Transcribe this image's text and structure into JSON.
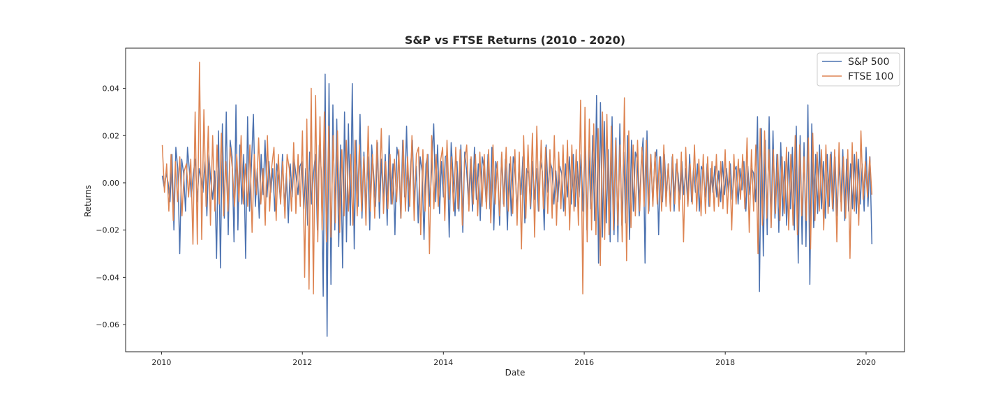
{
  "chart_data": {
    "type": "line",
    "title": "S&P vs FTSE Returns (2010 - 2020)",
    "xlabel": "Date",
    "ylabel": "Returns",
    "xlim": [
      "2009-06-29",
      "2020-07-18"
    ],
    "ylim": [
      -0.0715,
      0.057
    ],
    "x_ticks": [
      "2010",
      "2012",
      "2014",
      "2016",
      "2018",
      "2020"
    ],
    "y_ticks": [
      "−0.06",
      "−0.04",
      "−0.02",
      "0.00",
      "0.02",
      "0.04"
    ],
    "legend_position": "top-right",
    "grid": false,
    "x_range": [
      "2010-01-05",
      "2020-01-31"
    ],
    "series": [
      {
        "name": "S&P 500",
        "color": "#4c72b0",
        "values": [
          0.003,
          -0.002,
          0.004,
          0.0,
          -0.008,
          0.012,
          -0.02,
          0.015,
          0.006,
          -0.03,
          0.01,
          0.004,
          -0.012,
          0.015,
          0.005,
          -0.006,
          0.004,
          0.01,
          -0.008,
          0.006,
          0.002,
          -0.004,
          0.009,
          -0.014,
          0.012,
          0.001,
          -0.007,
          0.005,
          -0.032,
          0.022,
          -0.036,
          0.025,
          -0.015,
          0.03,
          -0.022,
          0.018,
          0.011,
          -0.025,
          0.033,
          -0.02,
          0.016,
          -0.009,
          0.012,
          -0.032,
          0.028,
          -0.012,
          0.008,
          0.029,
          -0.01,
          0.006,
          -0.015,
          0.012,
          -0.005,
          0.018,
          -0.006,
          0.009,
          -0.004,
          0.006,
          -0.012,
          0.008,
          0.002,
          -0.008,
          0.012,
          -0.01,
          0.004,
          -0.017,
          0.008,
          -0.006,
          0.01,
          0.003,
          -0.005,
          0.007,
          0.009,
          -0.011,
          0.006,
          -0.018,
          0.013,
          -0.009,
          0.004,
          0.012,
          -0.02,
          0.016,
          0.005,
          -0.048,
          0.046,
          -0.065,
          0.042,
          -0.043,
          0.033,
          -0.02,
          0.027,
          -0.027,
          0.016,
          -0.036,
          0.03,
          -0.025,
          0.025,
          -0.018,
          0.042,
          -0.028,
          0.018,
          -0.01,
          0.029,
          -0.015,
          0.013,
          -0.012,
          0.011,
          -0.02,
          0.016,
          0.004,
          -0.01,
          0.017,
          -0.015,
          0.01,
          -0.008,
          0.012,
          -0.018,
          0.02,
          -0.009,
          0.008,
          -0.022,
          0.015,
          0.01,
          -0.015,
          0.018,
          -0.006,
          0.024,
          -0.012,
          0.006,
          0.018,
          -0.009,
          0.007,
          -0.017,
          0.011,
          0.005,
          -0.024,
          0.008,
          0.012,
          -0.01,
          0.007,
          0.025,
          -0.008,
          0.016,
          -0.013,
          0.009,
          -0.006,
          0.011,
          0.012,
          -0.023,
          0.017,
          0.003,
          -0.014,
          0.009,
          -0.012,
          0.016,
          -0.021,
          0.013,
          0.005,
          -0.009,
          0.01,
          -0.012,
          0.015,
          -0.007,
          0.008,
          -0.016,
          0.011,
          0.006,
          -0.008,
          0.012,
          -0.011,
          0.015,
          -0.02,
          0.009,
          0.004,
          -0.018,
          0.012,
          -0.009,
          0.01,
          -0.02,
          0.008,
          -0.014,
          0.011,
          0.006,
          -0.013,
          0.008,
          -0.005,
          0.011,
          -0.017,
          0.006,
          0.004,
          -0.011,
          0.009,
          -0.007,
          0.006,
          -0.012,
          0.009,
          0.005,
          -0.02,
          0.016,
          -0.004,
          0.009,
          0.006,
          -0.009,
          0.005,
          -0.008,
          0.007,
          0.004,
          -0.012,
          0.008,
          -0.006,
          0.011,
          -0.009,
          0.012,
          -0.01,
          0.009,
          -0.006,
          0.012,
          -0.012,
          0.016,
          -0.02,
          0.014,
          -0.011,
          0.02,
          -0.016,
          0.037,
          -0.034,
          0.034,
          -0.023,
          0.026,
          -0.017,
          0.014,
          -0.025,
          0.028,
          -0.022,
          0.019,
          -0.025,
          0.025,
          -0.018,
          0.013,
          -0.017,
          0.02,
          -0.024,
          0.018,
          -0.012,
          0.013,
          0.01,
          -0.014,
          0.008,
          0.019,
          -0.034,
          0.022,
          -0.012,
          0.012,
          -0.009,
          0.009,
          0.014,
          -0.022,
          0.011,
          -0.008,
          0.012,
          -0.006,
          0.008,
          -0.01,
          0.011,
          -0.012,
          0.008,
          0.004,
          -0.007,
          0.009,
          -0.005,
          0.006,
          -0.009,
          0.012,
          -0.008,
          0.006,
          -0.004,
          0.008,
          -0.012,
          0.007,
          0.005,
          -0.006,
          0.008,
          -0.01,
          0.006,
          -0.004,
          0.007,
          -0.006,
          0.005,
          -0.008,
          0.009,
          -0.005,
          0.006,
          -0.004,
          0.008,
          -0.007,
          0.005,
          0.007,
          -0.009,
          0.006,
          -0.003,
          0.009,
          -0.012,
          0.007,
          -0.005,
          0.006,
          0.004,
          -0.008,
          0.028,
          -0.046,
          0.023,
          -0.031,
          0.018,
          -0.022,
          0.028,
          -0.019,
          0.022,
          -0.015,
          0.012,
          -0.021,
          0.017,
          -0.014,
          0.009,
          -0.018,
          0.013,
          -0.011,
          0.015,
          -0.02,
          0.024,
          -0.034,
          0.02,
          -0.026,
          0.017,
          -0.027,
          0.033,
          -0.043,
          0.025,
          -0.019,
          0.012,
          -0.013,
          0.016,
          -0.011,
          0.009,
          -0.015,
          0.012,
          -0.01,
          0.013,
          -0.012,
          0.011,
          -0.014,
          0.009,
          -0.008,
          0.014,
          -0.016,
          0.01,
          -0.012,
          0.008,
          -0.011,
          0.012,
          -0.013,
          0.01,
          -0.009,
          0.008,
          -0.012,
          0.015,
          -0.01,
          0.011,
          -0.026
        ]
      },
      {
        "name": "FTSE 100",
        "color": "#dd8452",
        "values": [
          0.016,
          -0.004,
          0.008,
          -0.012,
          0.012,
          -0.016,
          0.009,
          -0.008,
          0.011,
          -0.014,
          0.005,
          0.008,
          -0.006,
          0.01,
          -0.026,
          0.03,
          -0.026,
          0.051,
          -0.024,
          0.031,
          -0.01,
          0.024,
          -0.018,
          0.02,
          -0.012,
          0.016,
          -0.009,
          0.021,
          -0.014,
          0.009,
          -0.012,
          0.015,
          0.006,
          -0.01,
          0.012,
          -0.008,
          0.02,
          -0.009,
          0.008,
          -0.01,
          0.016,
          -0.021,
          0.012,
          -0.005,
          0.019,
          -0.009,
          0.006,
          -0.018,
          0.02,
          -0.012,
          0.007,
          0.015,
          -0.016,
          0.012,
          -0.009,
          0.009,
          -0.015,
          0.012,
          0.006,
          -0.012,
          0.017,
          -0.013,
          0.012,
          -0.01,
          0.022,
          -0.04,
          0.027,
          -0.045,
          0.04,
          -0.047,
          0.037,
          -0.025,
          0.028,
          -0.02,
          0.03,
          -0.025,
          0.024,
          -0.023,
          0.02,
          -0.017,
          0.022,
          -0.021,
          0.014,
          -0.014,
          0.018,
          -0.012,
          0.012,
          -0.018,
          0.018,
          -0.014,
          0.016,
          -0.012,
          0.011,
          -0.018,
          0.024,
          -0.012,
          0.012,
          -0.015,
          0.018,
          -0.008,
          0.023,
          -0.013,
          0.009,
          -0.011,
          0.012,
          -0.009,
          0.01,
          -0.008,
          0.014,
          -0.015,
          0.018,
          -0.012,
          0.011,
          -0.01,
          0.02,
          -0.016,
          0.012,
          0.015,
          -0.022,
          0.014,
          -0.012,
          0.012,
          -0.03,
          0.02,
          -0.011,
          0.012,
          -0.01,
          0.009,
          0.015,
          -0.016,
          0.018,
          -0.007,
          0.011,
          -0.012,
          0.015,
          -0.011,
          0.014,
          -0.018,
          0.009,
          0.016,
          -0.012,
          0.011,
          -0.009,
          0.012,
          -0.014,
          0.013,
          -0.01,
          0.012,
          -0.011,
          0.014,
          -0.017,
          0.016,
          -0.009,
          0.009,
          -0.014,
          0.013,
          -0.01,
          0.015,
          -0.012,
          0.011,
          -0.013,
          0.014,
          -0.018,
          0.013,
          -0.028,
          0.02,
          -0.015,
          0.016,
          -0.01,
          0.021,
          -0.023,
          0.024,
          -0.012,
          0.018,
          -0.011,
          0.015,
          -0.013,
          0.014,
          -0.015,
          0.02,
          -0.018,
          0.013,
          -0.011,
          0.016,
          -0.014,
          0.018,
          -0.02,
          0.016,
          -0.012,
          0.014,
          -0.018,
          0.035,
          -0.047,
          0.032,
          -0.025,
          0.027,
          -0.02,
          0.025,
          -0.022,
          0.023,
          -0.035,
          0.03,
          -0.024,
          0.029,
          -0.022,
          0.024,
          -0.02,
          0.018,
          -0.018,
          0.016,
          -0.025,
          0.036,
          -0.033,
          0.022,
          -0.019,
          0.016,
          -0.014,
          0.018,
          -0.012,
          0.015,
          -0.01,
          0.018,
          -0.013,
          0.012,
          -0.01,
          0.013,
          -0.009,
          0.011,
          -0.012,
          0.016,
          -0.01,
          0.008,
          -0.012,
          0.012,
          -0.009,
          0.01,
          -0.012,
          0.013,
          -0.025,
          0.015,
          -0.01,
          0.008,
          -0.009,
          0.016,
          -0.012,
          0.01,
          -0.014,
          0.012,
          -0.013,
          0.011,
          -0.01,
          0.009,
          -0.012,
          0.012,
          -0.01,
          0.009,
          -0.011,
          0.014,
          -0.013,
          0.009,
          -0.02,
          0.012,
          -0.009,
          0.01,
          -0.007,
          0.012,
          -0.011,
          0.019,
          -0.021,
          0.014,
          -0.012,
          0.016,
          -0.03,
          0.023,
          -0.018,
          0.022,
          -0.015,
          0.014,
          -0.019,
          0.014,
          -0.013,
          0.012,
          -0.016,
          0.011,
          -0.013,
          0.015,
          -0.02,
          0.012,
          -0.018,
          0.02,
          -0.022,
          0.016,
          -0.014,
          0.011,
          -0.016,
          0.019,
          -0.028,
          0.021,
          -0.016,
          0.013,
          -0.012,
          0.014,
          -0.02,
          0.016,
          -0.013,
          0.012,
          -0.011,
          0.014,
          -0.025,
          0.017,
          -0.012,
          0.011,
          -0.015,
          0.014,
          -0.032,
          0.017,
          -0.012,
          0.013,
          -0.018,
          0.022,
          -0.007,
          0.009,
          -0.006,
          0.011,
          -0.005
        ]
      }
    ]
  }
}
